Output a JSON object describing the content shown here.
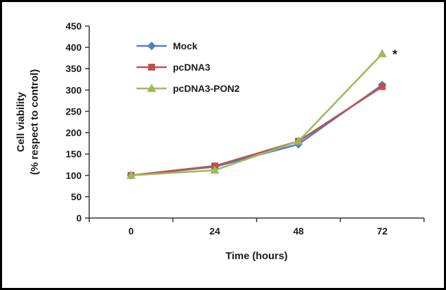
{
  "chart_data": {
    "type": "line",
    "title": "",
    "xlabel": "Time (hours)",
    "ylabel_line1": "Cell viability",
    "ylabel_line2": "(% respect to control)",
    "categories": [
      "0",
      "24",
      "48",
      "72"
    ],
    "ylim": [
      0,
      450
    ],
    "ytick_step": 50,
    "grid": false,
    "legend_position": "top-left-inside",
    "series": [
      {
        "name": "Mock",
        "color": "#4F81BD",
        "marker": "diamond",
        "values": [
          100,
          120,
          173,
          312
        ]
      },
      {
        "name": "pcDNA3",
        "color": "#C0504D",
        "marker": "square",
        "values": [
          100,
          122,
          180,
          308
        ]
      },
      {
        "name": "pcDNA3-PON2",
        "color": "#9BBB59",
        "marker": "triangle",
        "values": [
          100,
          112,
          180,
          385
        ]
      }
    ],
    "annotation": {
      "text": "*",
      "series_index": 2,
      "category_index": 3
    }
  },
  "style": {
    "axis_color": "#333333",
    "text_color": "#1a1a1a"
  }
}
